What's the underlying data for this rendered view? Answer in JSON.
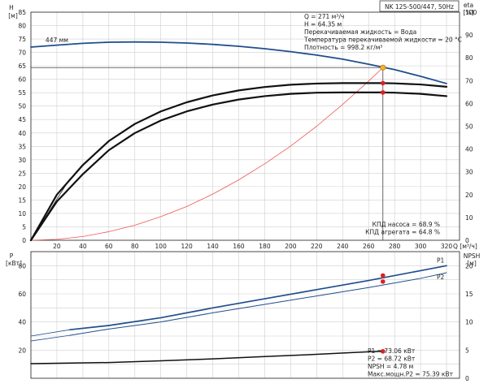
{
  "chart_data": [
    {
      "type": "line",
      "panel": "top",
      "title": "NK 125-500/447, 50Hz",
      "left_axis": {
        "label": "H",
        "unit": "[м]",
        "ylim": [
          0,
          85
        ],
        "ticks": [
          0,
          5,
          10,
          15,
          20,
          25,
          30,
          35,
          40,
          45,
          50,
          55,
          60,
          65,
          70,
          75,
          80,
          85
        ]
      },
      "right_axis": {
        "label": "eta",
        "unit": "[%]",
        "ylim": [
          0,
          100
        ],
        "ticks": [
          0,
          10,
          20,
          30,
          40,
          50,
          60,
          70,
          80,
          90,
          100
        ]
      },
      "x_axis": {
        "label": "Q [м³/ч]",
        "xlim": [
          0,
          330
        ],
        "ticks": [
          0,
          20,
          40,
          60,
          80,
          100,
          120,
          140,
          160,
          180,
          200,
          220,
          240,
          260,
          280,
          300,
          320
        ],
        "ticklabels_shown": [
          20,
          40,
          60,
          80,
          100,
          120,
          140,
          160,
          180,
          200,
          220,
          240,
          260,
          280,
          300,
          320
        ]
      },
      "grid": true,
      "series": [
        {
          "name": "447 мм",
          "axis": "left",
          "color": "#1f4e8c",
          "x": [
            0,
            20,
            40,
            60,
            80,
            100,
            120,
            140,
            160,
            180,
            200,
            220,
            240,
            260,
            280,
            300,
            320
          ],
          "y": [
            72.0,
            72.7,
            73.4,
            73.8,
            73.9,
            73.8,
            73.5,
            73.0,
            72.3,
            71.4,
            70.3,
            69.0,
            67.5,
            65.6,
            63.6,
            61.1,
            58.4
          ]
        },
        {
          "name": "КПД насоса",
          "axis": "right",
          "color": "#111111",
          "x": [
            0,
            20,
            40,
            60,
            80,
            100,
            120,
            140,
            160,
            180,
            200,
            220,
            240,
            260,
            270,
            280,
            300,
            320
          ],
          "y": [
            0,
            20,
            33,
            43.5,
            51,
            56.5,
            60.5,
            63.5,
            65.7,
            67.2,
            68.2,
            68.7,
            68.9,
            68.9,
            68.9,
            68.8,
            68.3,
            67.3
          ]
        },
        {
          "name": "КПД агрегата",
          "axis": "right",
          "color": "#111111",
          "x": [
            0,
            20,
            40,
            60,
            80,
            100,
            120,
            140,
            160,
            180,
            200,
            220,
            240,
            260,
            270,
            280,
            300,
            320
          ],
          "y": [
            0,
            17,
            29,
            39.5,
            47,
            52.5,
            56.5,
            59.5,
            61.7,
            63.2,
            64.2,
            64.7,
            64.8,
            64.8,
            64.8,
            64.7,
            64.2,
            63.2
          ]
        },
        {
          "name": "system curve",
          "axis": "left",
          "color": "#ee5555",
          "x": [
            0,
            20,
            40,
            60,
            80,
            100,
            120,
            140,
            160,
            180,
            200,
            220,
            240,
            260,
            271
          ],
          "y": [
            0,
            0.35,
            1.4,
            3.2,
            5.6,
            8.8,
            12.6,
            17.2,
            22.5,
            28.5,
            35.1,
            42.5,
            50.6,
            59.3,
            64.35
          ]
        }
      ],
      "duty_point": {
        "Q": 271,
        "H": 64.35
      },
      "info_lines": [
        "Q = 271 м³/ч",
        "H = 64.35 м",
        "Перекачиваемая жидкость = Вода",
        "Температура перекачиваемой жидкости = 20 °C",
        "Плотность = 998.2 кг/м³"
      ],
      "efficiency_labels": [
        "КПД насоса = 68.9 %",
        "КПД агрегата = 64.8 %"
      ],
      "annotations": {
        "curve_label": "447 мм"
      }
    },
    {
      "type": "line",
      "panel": "bottom",
      "left_axis": {
        "label": "P",
        "unit": "[кВт]",
        "ylim": [
          0,
          90
        ],
        "ticks": [
          0,
          20,
          40,
          60,
          80
        ]
      },
      "right_axis": {
        "label": "NPSH",
        "unit": "[м]",
        "ylim": [
          0,
          22.5
        ],
        "ticks": [
          0,
          5,
          10,
          15,
          20
        ]
      },
      "x_axis": {
        "xlim": [
          0,
          330
        ]
      },
      "grid": true,
      "series": [
        {
          "name": "P1",
          "axis": "left",
          "color": "#1f4e8c",
          "x": [
            30,
            60,
            100,
            140,
            180,
            220,
            260,
            300,
            320
          ],
          "y": [
            34.5,
            37.5,
            43,
            50,
            56.5,
            63,
            69.5,
            76.5,
            80
          ]
        },
        {
          "name": "P2",
          "axis": "left",
          "color": "#1f4e8c",
          "x": [
            30,
            60,
            100,
            140,
            180,
            220,
            260,
            300,
            320
          ],
          "y": [
            30.5,
            35,
            40,
            46.5,
            52.5,
            58.5,
            64.5,
            71,
            75
          ]
        },
        {
          "name": "NPSH",
          "axis": "right",
          "color": "#111111",
          "x": [
            0,
            60,
            100,
            140,
            180,
            220,
            260,
            270
          ],
          "y": [
            2.6,
            2.8,
            3.1,
            3.45,
            3.85,
            4.25,
            4.7,
            4.78
          ]
        }
      ],
      "left_start_segment": {
        "P1": {
          "x": [
            0,
            30
          ],
          "y": [
            30,
            34.5
          ]
        },
        "P2": {
          "x": [
            0,
            30
          ],
          "y": [
            26.5,
            30.5
          ]
        }
      },
      "info_lines": [
        "P1 = 73.06 кВт",
        "P2 = 68.72 кВт",
        "NPSH = 4.78 м",
        "Макс.мощн.P2 = 75.39 кВт"
      ],
      "markers": {
        "P1": 73.06,
        "P2": 68.72,
        "NPSH": 4.78,
        "Q": 271
      }
    }
  ]
}
